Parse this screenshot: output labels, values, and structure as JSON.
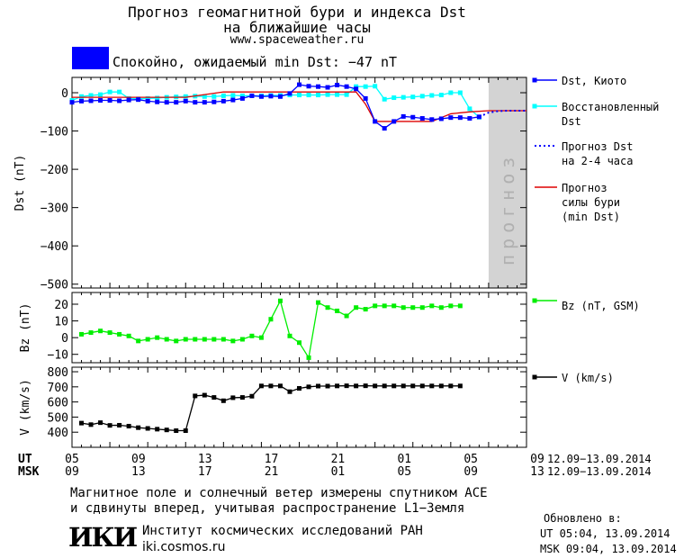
{
  "header": {
    "title_line1": "Прогноз геомагнитной бури и индекса Dst",
    "title_line2": "на ближайшие часы",
    "site": "www.spaceweather.ru"
  },
  "status": {
    "text": "Спокойно, ожидаемый min Dst: −47 nT",
    "color": "#0000ff"
  },
  "colors": {
    "dst_kyoto": "#0000ff",
    "dst_restored": "#00ffff",
    "dst_forecast": "#0000ff",
    "storm_forecast": "#dd0000",
    "bz": "#00ee00",
    "speed": "#000000",
    "forecast_band": "#d3d3d3"
  },
  "chart_data": [
    {
      "type": "line",
      "name": "dst",
      "ylabel": "Dst (nT)",
      "ylim": [
        -510,
        40
      ],
      "yticks": [
        0,
        -100,
        -200,
        -300,
        -400,
        -500
      ],
      "xlim": [
        0,
        48
      ],
      "forecast_band": [
        44,
        48
      ],
      "forecast_label": "прогноз",
      "series": [
        {
          "name": "Dst, Киото",
          "style": "line-square",
          "x": [
            0,
            1,
            2,
            3,
            4,
            5,
            6,
            7,
            8,
            9,
            10,
            11,
            12,
            13,
            14,
            15,
            16,
            17,
            18,
            19,
            20,
            21,
            22,
            23,
            24,
            25,
            26,
            27,
            28,
            29,
            30,
            31,
            32,
            33,
            34,
            35,
            36,
            37,
            38,
            39,
            40,
            41,
            42,
            43
          ],
          "y": [
            -25,
            -22,
            -21,
            -20,
            -20,
            -21,
            -19,
            -18,
            -22,
            -24,
            -25,
            -25,
            -22,
            -25,
            -25,
            -24,
            -22,
            -19,
            -15,
            -8,
            -10,
            -9,
            -10,
            -2,
            21,
            17,
            16,
            14,
            20,
            16,
            10,
            -15,
            -75,
            -93,
            -75,
            -62,
            -64,
            -67,
            -70,
            -68,
            -65,
            -65,
            -67,
            -63
          ]
        },
        {
          "name": "Восстановленный Dst",
          "style": "line-square",
          "x": [
            0,
            1,
            2,
            3,
            4,
            5,
            6,
            7,
            8,
            9,
            10,
            11,
            12,
            13,
            14,
            15,
            16,
            17,
            18,
            19,
            20,
            21,
            22,
            23,
            24,
            25,
            26,
            27,
            28,
            29,
            30,
            31,
            32,
            33,
            34,
            35,
            36,
            37,
            38,
            39,
            40,
            41,
            42,
            43
          ],
          "y": [
            -20,
            -10,
            -7,
            -5,
            2,
            2,
            -15,
            -16,
            -15,
            -14,
            -12,
            -11,
            -10,
            -9,
            -10,
            -10,
            -8,
            -7,
            -8,
            -8,
            -8,
            -7,
            -7,
            -6,
            -6,
            -6,
            -6,
            -5,
            -5,
            -5,
            16,
            16,
            17,
            -17,
            -13,
            -12,
            -11,
            -9,
            -7,
            -6,
            0,
            0,
            -42,
            -64
          ]
        },
        {
          "name": "Прогноз Dst на 2-4 часа",
          "style": "dotted",
          "x": [
            43,
            44,
            45,
            46,
            47,
            48
          ],
          "y": [
            -63,
            -52,
            -48,
            -47,
            -47,
            -47
          ]
        },
        {
          "name": "Прогноз силы бури (min Dst)",
          "style": "line",
          "x": [
            0,
            2,
            4,
            6,
            8,
            10,
            12,
            14,
            16,
            18,
            20,
            22,
            24,
            26,
            28,
            30,
            31,
            32,
            34,
            36,
            38,
            40,
            42,
            44,
            46,
            48
          ],
          "y": [
            -12,
            -12,
            -12,
            -12,
            -12,
            -12,
            -12,
            -5,
            2,
            2,
            2,
            2,
            2,
            2,
            2,
            2,
            -30,
            -75,
            -75,
            -75,
            -75,
            -55,
            -50,
            -47,
            -47,
            -47
          ]
        }
      ]
    },
    {
      "type": "line",
      "name": "bz",
      "ylabel": "Bz (nT)",
      "ylim": [
        -15,
        27
      ],
      "yticks": [
        20,
        10,
        0,
        -10
      ],
      "xlim": [
        0,
        48
      ],
      "series": [
        {
          "name": "Bz (nT, GSM)",
          "x": [
            1,
            2,
            3,
            4,
            5,
            6,
            7,
            8,
            9,
            10,
            11,
            12,
            13,
            14,
            15,
            16,
            17,
            18,
            19,
            20,
            21,
            22,
            23,
            24,
            25,
            26,
            27,
            28,
            29,
            30,
            31,
            32,
            33,
            34,
            35,
            36,
            37,
            38,
            39,
            40,
            41
          ],
          "y": [
            2,
            3,
            4,
            3,
            2,
            1,
            -2,
            -1,
            0,
            -1,
            -2,
            -1,
            -1,
            -1,
            -1,
            -1,
            -2,
            -1,
            1,
            0,
            11,
            22,
            1,
            -3,
            -12,
            21,
            18,
            16,
            13,
            18,
            17,
            19,
            19,
            19,
            18,
            18,
            18,
            19,
            18,
            19,
            19
          ]
        }
      ]
    },
    {
      "type": "line",
      "name": "speed",
      "ylabel": "V (km/s)",
      "ylim": [
        300,
        830
      ],
      "yticks": [
        800,
        700,
        600,
        500,
        400
      ],
      "xlim": [
        0,
        48
      ],
      "series": [
        {
          "name": "V (km/s)",
          "x": [
            1,
            2,
            3,
            4,
            5,
            6,
            7,
            8,
            9,
            10,
            11,
            12,
            13,
            14,
            15,
            16,
            17,
            18,
            19,
            20,
            21,
            22,
            23,
            24,
            25,
            26,
            27,
            28,
            29,
            30,
            31,
            32,
            33,
            34,
            35,
            36,
            37,
            38,
            39,
            40,
            41
          ],
          "y": [
            460,
            450,
            463,
            445,
            446,
            440,
            430,
            425,
            420,
            415,
            410,
            410,
            640,
            645,
            630,
            608,
            628,
            630,
            638,
            706,
            706,
            706,
            668,
            690,
            700,
            705,
            705,
            706,
            707,
            706,
            707,
            706,
            706,
            706,
            706,
            706,
            706,
            706,
            706,
            706,
            706
          ]
        }
      ]
    }
  ],
  "axes": {
    "ut_label": "UT",
    "msk_label": "MSK",
    "ut_ticks": [
      "05",
      "09",
      "13",
      "17",
      "21",
      "01",
      "05",
      "09"
    ],
    "msk_ticks": [
      "09",
      "13",
      "17",
      "21",
      "01",
      "05",
      "09",
      "13"
    ],
    "date_range": "12.09−13.09.2014"
  },
  "legend": {
    "dst_kyoto": "Dst, Киото",
    "restored_line1": "Восстановленный",
    "restored_line2": "Dst",
    "forecast_line1": "Прогноз Dst",
    "forecast_line2": "на 2-4 часа",
    "storm_line1": "Прогноз",
    "storm_line2": "силы бури",
    "storm_line3": "(min Dst)",
    "bz": "Bz (nT, GSM)",
    "speed": "V (km/s)"
  },
  "footer": {
    "line1": "Магнитное поле и солнечный ветер измерены спутником ACE",
    "line2": "и сдвинуты вперед, учитывая распространение L1−Земля",
    "institute_logo": "ИКИ",
    "institute_name": "Институт космических исследований РАН",
    "institute_url": "iki.cosmos.ru",
    "updated_label": "Обновлено в:",
    "updated_ut": "UT  05:04, 13.09.2014",
    "updated_msk": "MSK 09:04, 13.09.2014"
  }
}
